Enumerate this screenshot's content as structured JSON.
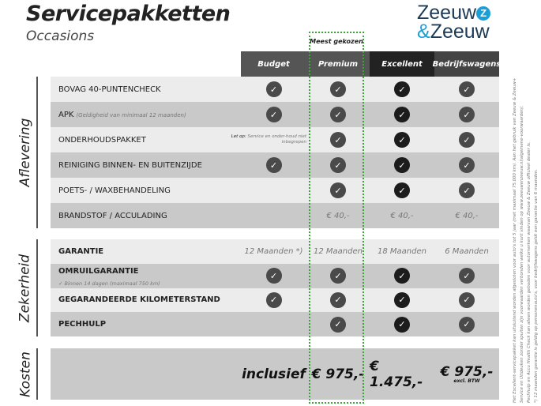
{
  "header": {
    "title": "Servicepakketten",
    "subtitle": "Occasions",
    "logo_text": "Zeeuw & Zeeuw",
    "badge": "Meest gekozen",
    "colors": {
      "accent": "#1aa0d8",
      "highlight": "#3aa63a"
    }
  },
  "columns": [
    {
      "label": "Budget",
      "color": "#555555"
    },
    {
      "label": "Premium",
      "color": "#555555"
    },
    {
      "label": "Excellent",
      "color": "#222222"
    },
    {
      "label": "Bedrijfswagens",
      "color": "#444444"
    }
  ],
  "sections": [
    {
      "label": "Aflevering",
      "rows": [
        {
          "label": "BOVAG 40-PUNTENCHECK",
          "cells": [
            "check",
            "check",
            "check",
            "check"
          ]
        },
        {
          "label": "APK",
          "note": "(Geldigheid van minimaal 12 maanden)",
          "cells": [
            "check",
            "check",
            "check",
            "check"
          ]
        },
        {
          "label": "ONDERHOUDSPAKKET",
          "budget_note_bold": "Let op:",
          "budget_note": "Service en onder-houd niet inbegrepen",
          "cells": [
            "note",
            "check",
            "check",
            "check"
          ]
        },
        {
          "label": "REINIGING BINNEN- EN BUITENZIJDE",
          "cells": [
            "check",
            "check",
            "check",
            "check"
          ]
        },
        {
          "label": "POETS- / WAXBEHANDELING",
          "cells": [
            "",
            "check",
            "check",
            "check"
          ]
        },
        {
          "label": "BRANDSTOF / ACCULADING",
          "cells": [
            "",
            "€ 40,-",
            "€ 40,-",
            "€ 40,-"
          ]
        }
      ]
    },
    {
      "label": "Zekerheid",
      "rows": [
        {
          "label": "GARANTIE",
          "cells": [
            "12 Maanden *)",
            "12 Maanden",
            "18 Maanden",
            "6 Maanden"
          ]
        },
        {
          "label": "OMRUILGARANTIE",
          "sub": "✓  Binnen 14 dagen (maximaal 750 km)",
          "cells": [
            "check",
            "check",
            "check",
            "check"
          ]
        },
        {
          "label": "GEGARANDEERDE KILOMETERSTAND",
          "cells": [
            "check",
            "check",
            "check",
            "check"
          ]
        },
        {
          "label": "PECHHULP",
          "cells": [
            "",
            "check",
            "check",
            "check"
          ]
        }
      ]
    },
    {
      "label": "Kosten",
      "rows": [
        {
          "label": "",
          "cells": [
            "inclusief",
            "€ 975,-",
            "€ 1.475,-",
            "€ 975,-"
          ],
          "price_note": "excl. BTW"
        }
      ]
    }
  ],
  "footnotes": [
    "Het Excellent-servicepakket kan uitsluitend worden afgesloten voor auto's tot 5 jaar (met maximaal 75.000 km). Aan het gebruik van Zeeuw & Zeeuw+",
    "Service en Uitdeuken zonder spuiten zijn voorwaarden verbonden welke u kunt vinden op www.zeeuwenzeeuw.nl/algemene-voorwaarden/.",
    "Pechhulp en Accu Health Check kan alleen worden geboden voor automerken waarvan Zeeuw & Zeeuw officieel dealer is.",
    "*) 12 maanden garantie is geldig op personenauto's, voor bedrijfswagens geldt een garantie van 6 maanden."
  ]
}
